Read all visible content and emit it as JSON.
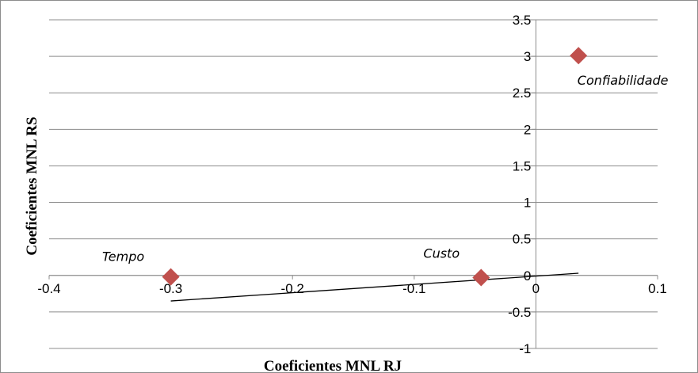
{
  "chart_data": {
    "type": "scatter",
    "title": "",
    "xlabel": "Coeficientes  MNL   RJ",
    "ylabel": "Coeficientes  MNL   RS",
    "xlim": [
      -0.4,
      0.1
    ],
    "ylim": [
      -1,
      3.5
    ],
    "x_ticks": [
      "-0.4",
      "-0.3",
      "-0.2",
      "-0.1",
      "0",
      "0.1"
    ],
    "y_ticks": [
      "-1",
      "-0.5",
      "0",
      "0.5",
      "1",
      "1.5",
      "2",
      "2.5",
      "3",
      "3.5"
    ],
    "grid": "horizontal",
    "marker": "diamond",
    "marker_color": "#c0504d",
    "points": [
      {
        "label": "Tempo",
        "x": -0.3,
        "y": -0.02
      },
      {
        "label": "Custo",
        "x": -0.045,
        "y": -0.03
      },
      {
        "label": "Confiabilidade",
        "x": 0.035,
        "y": 3.01
      }
    ],
    "trendline": {
      "x": [
        -0.3,
        0.035
      ],
      "y": [
        -0.35,
        0.03
      ]
    }
  }
}
